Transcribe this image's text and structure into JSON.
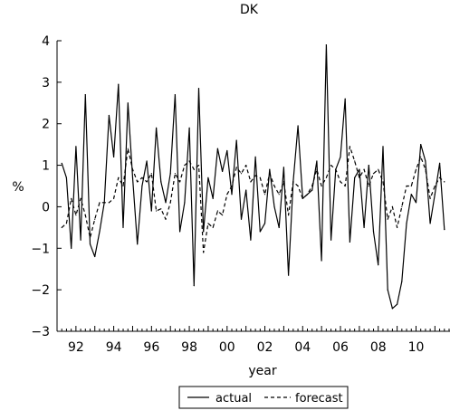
{
  "chart_data": {
    "type": "line",
    "title": "DK",
    "xlabel": "year",
    "ylabel": "%",
    "ylim": [
      -3,
      4
    ],
    "xlim": [
      1991.0,
      2011.75
    ],
    "yticks": [
      "−3",
      "−2",
      "−1",
      "0",
      "1",
      "2",
      "3",
      "4"
    ],
    "ytick_values": [
      -3,
      -2,
      -1,
      0,
      1,
      2,
      3,
      4
    ],
    "xticks": [
      "92",
      "94",
      "96",
      "98",
      "00",
      "02",
      "04",
      "06",
      "08",
      "10"
    ],
    "xtick_values": [
      1992,
      1994,
      1996,
      1998,
      2000,
      2002,
      2004,
      2006,
      2008,
      2010
    ],
    "grid": false,
    "legend": "bottom-center",
    "x": [
      1991.25,
      1991.5,
      1991.75,
      1992.0,
      1992.25,
      1992.5,
      1992.75,
      1993.0,
      1993.25,
      1993.5,
      1993.75,
      1994.0,
      1994.25,
      1994.5,
      1994.75,
      1995.0,
      1995.25,
      1995.5,
      1995.75,
      1996.0,
      1996.25,
      1996.5,
      1996.75,
      1997.0,
      1997.25,
      1997.5,
      1997.75,
      1998.0,
      1998.25,
      1998.5,
      1998.75,
      1999.0,
      1999.25,
      1999.5,
      1999.75,
      2000.0,
      2000.25,
      2000.5,
      2000.75,
      2001.0,
      2001.25,
      2001.5,
      2001.75,
      2002.0,
      2002.25,
      2002.5,
      2002.75,
      2003.0,
      2003.25,
      2003.5,
      2003.75,
      2004.0,
      2004.25,
      2004.5,
      2004.75,
      2005.0,
      2005.25,
      2005.5,
      2005.75,
      2006.0,
      2006.25,
      2006.5,
      2006.75,
      2007.0,
      2007.25,
      2007.5,
      2007.75,
      2008.0,
      2008.25,
      2008.5,
      2008.75,
      2009.0,
      2009.25,
      2009.5,
      2009.75,
      2010.0,
      2010.25,
      2010.5,
      2010.75,
      2011.0,
      2011.25,
      2011.5
    ],
    "series": [
      {
        "name": "actual",
        "style": "solid",
        "color": "#000000",
        "values": [
          1.05,
          0.7,
          -1.0,
          1.45,
          -0.8,
          2.7,
          -0.9,
          -1.2,
          -0.6,
          0.1,
          2.2,
          1.2,
          2.95,
          -0.5,
          2.5,
          0.7,
          -0.9,
          0.5,
          1.1,
          -0.1,
          1.9,
          0.6,
          0.1,
          0.8,
          2.7,
          -0.6,
          0.1,
          1.9,
          -1.9,
          2.85,
          -0.6,
          0.7,
          0.2,
          1.4,
          0.85,
          1.35,
          0.3,
          1.6,
          -0.3,
          0.4,
          -0.8,
          1.2,
          -0.6,
          -0.4,
          0.9,
          0.0,
          -0.5,
          0.95,
          -1.65,
          0.6,
          1.95,
          0.2,
          0.3,
          0.4,
          1.1,
          -1.3,
          3.9,
          -0.8,
          0.9,
          1.2,
          2.6,
          -0.85,
          0.7,
          0.9,
          -0.5,
          1.0,
          -0.6,
          -1.4,
          1.45,
          -2.0,
          -2.45,
          -2.35,
          -1.8,
          -0.4,
          0.3,
          0.1,
          1.5,
          1.1,
          -0.4,
          0.3,
          1.05,
          -0.55
        ]
      },
      {
        "name": "forecast",
        "style": "dashed",
        "color": "#000000",
        "values": [
          -0.5,
          -0.4,
          0.2,
          -0.2,
          0.2,
          -0.2,
          -0.75,
          -0.3,
          0.1,
          0.1,
          0.1,
          0.2,
          0.7,
          0.5,
          1.4,
          0.9,
          0.6,
          0.7,
          0.6,
          0.8,
          -0.1,
          -0.05,
          -0.3,
          0.1,
          0.8,
          0.6,
          1.0,
          1.1,
          0.9,
          1.0,
          -1.1,
          -0.4,
          -0.5,
          -0.1,
          -0.2,
          0.3,
          0.5,
          0.95,
          0.8,
          1.0,
          0.6,
          0.75,
          0.7,
          0.3,
          0.8,
          0.5,
          0.3,
          0.6,
          -0.2,
          0.6,
          0.5,
          0.2,
          0.3,
          0.5,
          0.9,
          0.5,
          0.7,
          1.0,
          0.9,
          0.6,
          0.5,
          1.45,
          1.1,
          0.7,
          0.9,
          0.5,
          0.8,
          0.9,
          0.6,
          -0.3,
          0.0,
          -0.5,
          0.0,
          0.5,
          0.5,
          0.9,
          1.2,
          0.9,
          0.2,
          0.5,
          0.7,
          0.6
        ]
      }
    ]
  }
}
